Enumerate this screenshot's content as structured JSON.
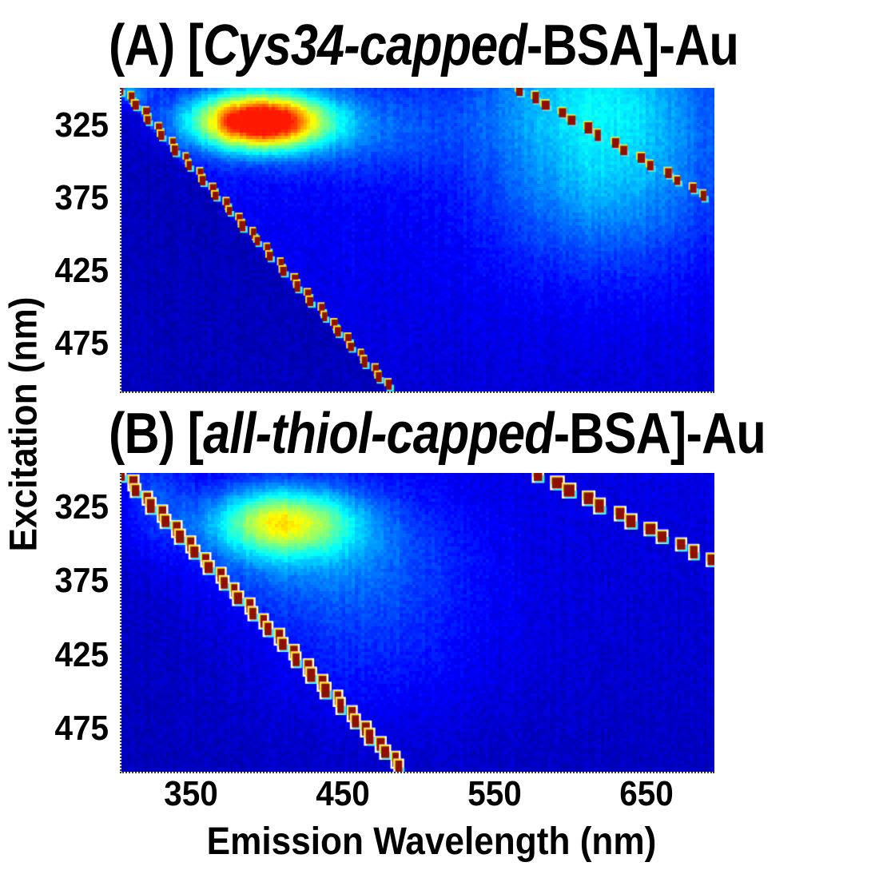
{
  "figure": {
    "y_axis_label": "Excitation (nm)",
    "x_axis_label": "Emission Wavelength (nm)"
  },
  "chart_data": [
    {
      "type": "heatmap",
      "panel_id": "A",
      "title": {
        "open": "(A) [",
        "italic": "Cys34-capped",
        "close": "-BSA]-Au"
      },
      "colormap": "jet",
      "x_range": [
        303,
        694
      ],
      "y_range": [
        299,
        508
      ],
      "x_ticks": [
        350,
        450,
        550,
        650
      ],
      "y_ticks": [
        325,
        375,
        425,
        475
      ],
      "background_level_top": 0.14,
      "background_level_bottom": 0.085,
      "below_scatter_level": 0.058,
      "value_cap": 0.85,
      "peaks": [
        {
          "em": 394,
          "ex": 322,
          "sigma_em": 29,
          "sigma_ex": 13,
          "amp": 0.85,
          "note": "blue protein-template emission maximum"
        },
        {
          "em": 452,
          "ex": 328,
          "sigma_em": 50,
          "sigma_ex": 20,
          "amp": 0.1,
          "note": "long-wavelength shoulder"
        },
        {
          "em": 622,
          "ex": 350,
          "sigma_em": 50,
          "sigma_ex": 48,
          "amp": 0.2,
          "note": "weak red Au-nanocluster emission cloud"
        },
        {
          "em": 612,
          "ex": 300,
          "sigma_em": 46,
          "sigma_ex": 26,
          "amp": 0.1,
          "note": "cloud extension to top edge"
        },
        {
          "em": 307,
          "ex": 302,
          "sigma_em": 10,
          "sigma_ex": 7,
          "amp": 0.14,
          "note": "corner glow at scatter-line start"
        }
      ],
      "line_style": "fringe",
      "dash_step_nm": 5.2,
      "scatter_lines": [
        {
          "name": "first-order-rayleigh-scatter",
          "em_at": [
            [
              299,
              303
            ],
            [
              508,
              482
            ]
          ],
          "dash": [
            7,
            12
          ]
        },
        {
          "name": "second-order-rayleigh-scatter",
          "em_at": [
            [
              299,
              564
            ],
            [
              377,
              694
            ]
          ],
          "dash": [
            9,
            13
          ]
        }
      ],
      "colors": {
        "core": "#8e1000",
        "fringe_yellow": "#ffdf25",
        "fringe_cyan": "#3fe9ff",
        "halo": "#ffffff"
      },
      "noise_seed": 7
    },
    {
      "type": "heatmap",
      "panel_id": "B",
      "title": {
        "open": "(B) [",
        "italic": "all-thiol-capped",
        "close": "-BSA]-Au"
      },
      "colormap": "jet",
      "x_range": [
        303,
        694
      ],
      "y_range": [
        302,
        504
      ],
      "x_ticks": [
        350,
        450,
        550,
        650
      ],
      "y_ticks": [
        325,
        375,
        425,
        475
      ],
      "background_level_top": 0.098,
      "background_level_bottom": 0.062,
      "below_scatter_level": 0.058,
      "value_cap": 0.95,
      "peaks": [
        {
          "em": 409,
          "ex": 335,
          "sigma_em": 31,
          "sigma_ex": 15,
          "amp": 0.42,
          "note": "yellow-green blue-emission maximum (weaker than panel A)"
        },
        {
          "em": 422,
          "ex": 350,
          "sigma_em": 55,
          "sigma_ex": 28,
          "amp": 0.13,
          "note": "broad halo"
        },
        {
          "em": 465,
          "ex": 400,
          "sigma_em": 62,
          "sigma_ex": 52,
          "amp": 0.09,
          "note": "tail toward longer wavelengths"
        },
        {
          "em": 323,
          "ex": 322,
          "sigma_em": 16,
          "sigma_ex": 24,
          "amp": 0.09,
          "note": "glow near scatter line"
        }
      ],
      "line_style": "halo",
      "dash_step_nm": 5.2,
      "scatter_lines": [
        {
          "name": "first-order-rayleigh-scatter",
          "em_at": [
            [
              302,
              303
            ],
            [
              504,
              490
            ]
          ],
          "dash": [
            9,
            16
          ]
        },
        {
          "name": "second-order-rayleigh-scatter",
          "em_at": [
            [
              302,
              576
            ],
            [
              362,
              694
            ]
          ],
          "dash": [
            12,
            15
          ]
        }
      ],
      "colors": {
        "core": "#8e1000",
        "fringe_yellow": "#ffdf25",
        "fringe_cyan": "#3fe9ff",
        "halo": "#ffffff"
      },
      "noise_seed": 13
    }
  ]
}
